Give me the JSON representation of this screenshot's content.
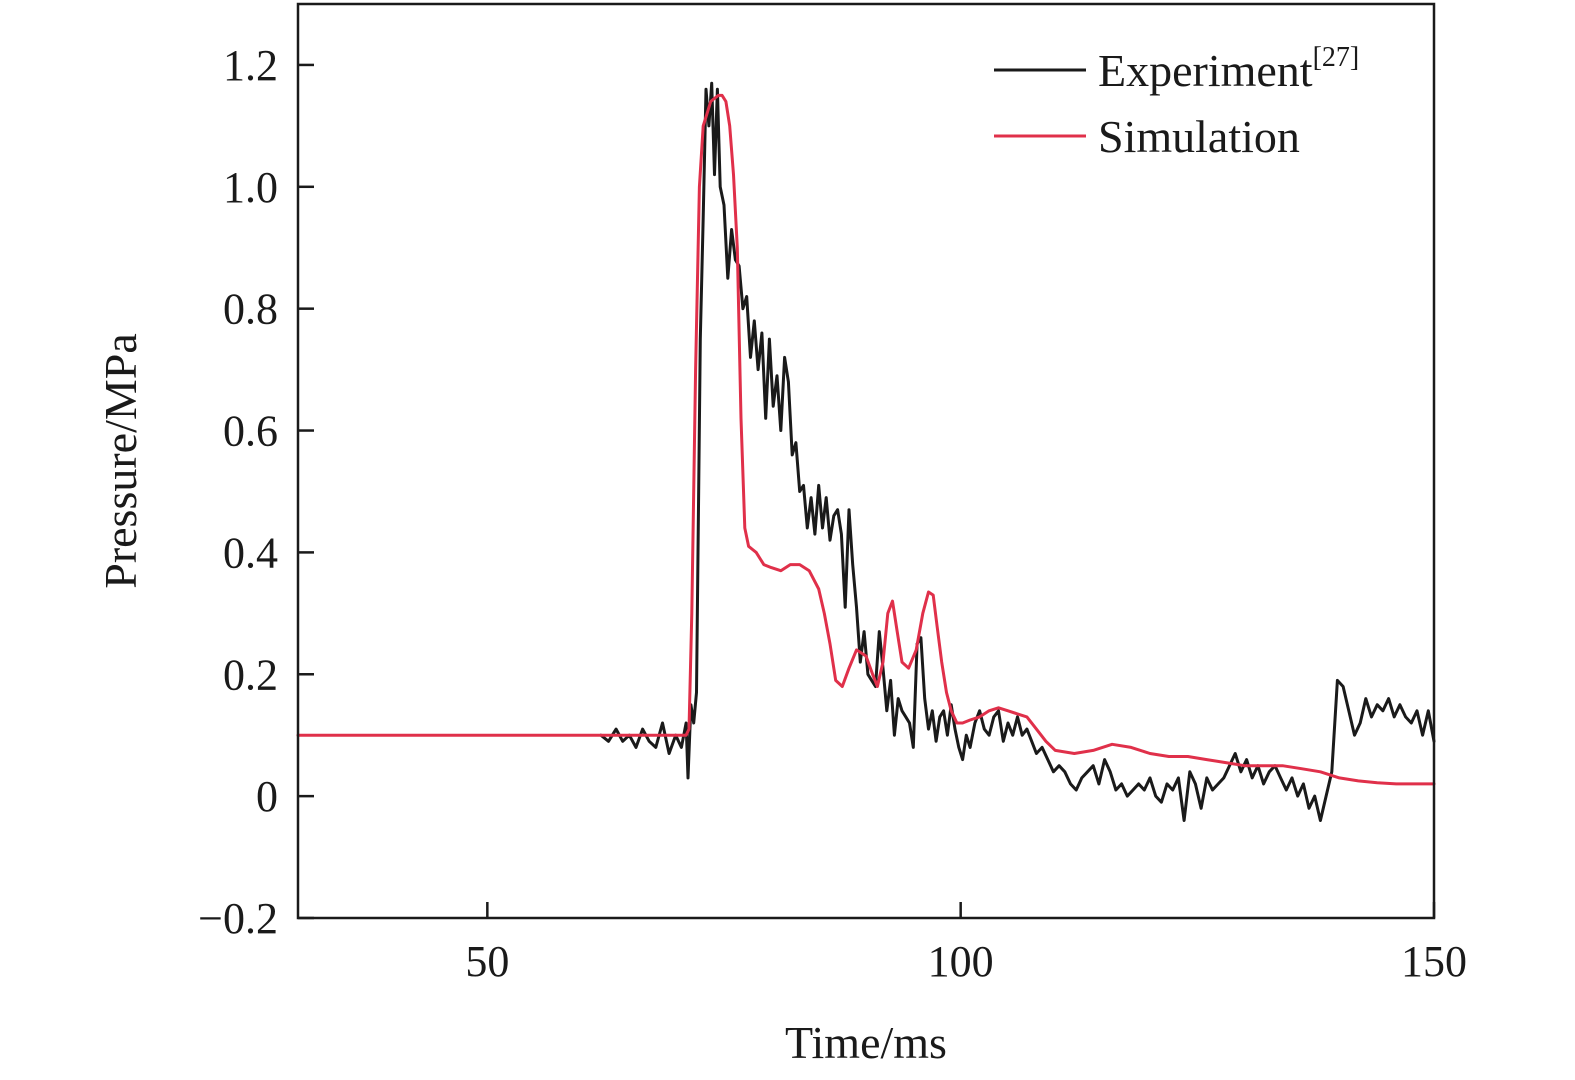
{
  "colors": {
    "experiment": "#1a1a1a",
    "simulation": "#e0304a",
    "axis": "#1a1a1a"
  },
  "chart_data": {
    "type": "line",
    "xlabel": "Time/ms",
    "ylabel": "Pressure/MPa",
    "xlim": [
      30,
      150
    ],
    "ylim": [
      -0.2,
      1.3
    ],
    "xticks": [
      50,
      100,
      150
    ],
    "yticks": [
      -0.2,
      0,
      0.2,
      0.4,
      0.6,
      0.8,
      1.0,
      1.2
    ],
    "ytick_labels": [
      "−0.2",
      "0",
      "0.2",
      "0.4",
      "0.6",
      "0.8",
      "1.0",
      "1.2"
    ],
    "xtick_labels": [
      "50",
      "100",
      "150"
    ],
    "legend_position": "top-right",
    "series": [
      {
        "name": "Experiment",
        "legend_sup": "[27]",
        "color_key": "experiment",
        "x": [
          62,
          62.8,
          63.6,
          64.3,
          65.0,
          65.7,
          66.4,
          67.1,
          67.8,
          68.5,
          69.2,
          69.9,
          70.5,
          71.0,
          71.2,
          71.5,
          71.8,
          72.1,
          72.5,
          72.8,
          73.1,
          73.4,
          73.7,
          74.0,
          74.3,
          74.6,
          75.0,
          75.4,
          75.8,
          76.2,
          76.6,
          77.0,
          77.4,
          77.8,
          78.2,
          78.6,
          79.0,
          79.4,
          79.8,
          80.2,
          80.6,
          81.0,
          81.4,
          81.8,
          82.2,
          82.6,
          83.0,
          83.4,
          83.8,
          84.2,
          84.6,
          85.0,
          85.4,
          85.8,
          86.2,
          86.6,
          87.0,
          87.4,
          87.8,
          88.2,
          88.6,
          89.0,
          89.4,
          89.8,
          90.2,
          90.6,
          91.0,
          91.4,
          91.8,
          92.2,
          92.6,
          93.0,
          93.4,
          93.8,
          94.2,
          94.6,
          95.0,
          95.4,
          95.8,
          96.2,
          96.6,
          97.0,
          97.4,
          97.8,
          98.2,
          98.6,
          99.0,
          99.4,
          99.8,
          100.2,
          100.6,
          101.0,
          101.5,
          102.0,
          102.5,
          103.0,
          103.5,
          104.0,
          104.5,
          105.0,
          105.5,
          106.0,
          106.5,
          107.0,
          107.5,
          108.0,
          108.6,
          109.2,
          109.8,
          110.4,
          111.0,
          111.6,
          112.2,
          112.8,
          113.4,
          114.0,
          114.6,
          115.2,
          115.8,
          116.4,
          117.0,
          117.6,
          118.2,
          118.8,
          119.4,
          120.0,
          120.6,
          121.2,
          121.8,
          122.4,
          123.0,
          123.6,
          124.2,
          124.8,
          125.4,
          126.0,
          126.6,
          127.2,
          127.8,
          128.4,
          129.0,
          129.6,
          130.2,
          130.8,
          131.4,
          132.0,
          132.6,
          133.2,
          133.8,
          134.4,
          135.0,
          135.6,
          136.2,
          136.8,
          137.4,
          138.0,
          138.6,
          139.2,
          139.8,
          140.4,
          141.0,
          141.6,
          142.2,
          142.8,
          143.4,
          144.0,
          144.6,
          145.2,
          145.8,
          146.4,
          147.0,
          147.6,
          148.2,
          148.8,
          149.4,
          150.0
        ],
        "y": [
          0.1,
          0.09,
          0.11,
          0.09,
          0.1,
          0.08,
          0.11,
          0.09,
          0.08,
          0.12,
          0.07,
          0.1,
          0.08,
          0.12,
          0.03,
          0.15,
          0.12,
          0.17,
          0.75,
          0.95,
          1.16,
          1.1,
          1.17,
          1.02,
          1.16,
          1.0,
          0.97,
          0.85,
          0.93,
          0.88,
          0.87,
          0.8,
          0.82,
          0.72,
          0.78,
          0.7,
          0.76,
          0.62,
          0.75,
          0.64,
          0.69,
          0.6,
          0.72,
          0.68,
          0.56,
          0.58,
          0.5,
          0.51,
          0.44,
          0.49,
          0.43,
          0.51,
          0.44,
          0.49,
          0.42,
          0.46,
          0.47,
          0.43,
          0.31,
          0.47,
          0.38,
          0.31,
          0.22,
          0.27,
          0.2,
          0.19,
          0.18,
          0.27,
          0.21,
          0.14,
          0.19,
          0.1,
          0.16,
          0.14,
          0.13,
          0.12,
          0.08,
          0.25,
          0.26,
          0.16,
          0.11,
          0.14,
          0.09,
          0.13,
          0.14,
          0.1,
          0.15,
          0.11,
          0.08,
          0.06,
          0.1,
          0.08,
          0.12,
          0.14,
          0.11,
          0.1,
          0.13,
          0.14,
          0.09,
          0.12,
          0.1,
          0.13,
          0.1,
          0.11,
          0.09,
          0.07,
          0.08,
          0.06,
          0.04,
          0.05,
          0.04,
          0.02,
          0.01,
          0.03,
          0.04,
          0.05,
          0.02,
          0.06,
          0.04,
          0.01,
          0.02,
          0.0,
          0.01,
          0.02,
          0.01,
          0.03,
          0.0,
          -0.01,
          0.02,
          0.01,
          0.03,
          -0.04,
          0.04,
          0.02,
          -0.02,
          0.03,
          0.01,
          0.02,
          0.03,
          0.05,
          0.07,
          0.04,
          0.06,
          0.03,
          0.05,
          0.02,
          0.04,
          0.05,
          0.03,
          0.01,
          0.03,
          0.0,
          0.02,
          -0.02,
          0.0,
          -0.04,
          0.0,
          0.04,
          0.19,
          0.18,
          0.14,
          0.1,
          0.12,
          0.16,
          0.13,
          0.15,
          0.14,
          0.16,
          0.13,
          0.15,
          0.13,
          0.12,
          0.14,
          0.1,
          0.14,
          0.09
        ]
      },
      {
        "name": "Simulation",
        "color_key": "simulation",
        "x": [
          30,
          60,
          70,
          71.0,
          71.3,
          71.6,
          72.0,
          72.4,
          72.8,
          73.2,
          73.6,
          74.0,
          74.4,
          74.8,
          75.2,
          75.6,
          76.0,
          76.4,
          76.8,
          77.2,
          77.6,
          78.0,
          78.4,
          78.8,
          79.2,
          80,
          81,
          82,
          83,
          84,
          85,
          85.6,
          86.2,
          86.8,
          87.5,
          88.2,
          89.0,
          90.0,
          90.7,
          91.2,
          91.8,
          92.3,
          92.8,
          93.3,
          93.8,
          94.5,
          95.3,
          96.0,
          96.6,
          97.1,
          97.5,
          98.0,
          98.5,
          99.0,
          99.6,
          100.2,
          101,
          102,
          103,
          104,
          105,
          106,
          107,
          108,
          109,
          110,
          112,
          114,
          116,
          118,
          120,
          122,
          124,
          126,
          128,
          130,
          132,
          134,
          136,
          138,
          140,
          142,
          144,
          146,
          148,
          150
        ],
        "y": [
          0.1,
          0.1,
          0.1,
          0.1,
          0.11,
          0.3,
          0.7,
          1.0,
          1.1,
          1.12,
          1.14,
          1.145,
          1.15,
          1.15,
          1.14,
          1.1,
          1.02,
          0.9,
          0.62,
          0.44,
          0.41,
          0.405,
          0.4,
          0.39,
          0.38,
          0.375,
          0.37,
          0.38,
          0.38,
          0.37,
          0.34,
          0.3,
          0.25,
          0.19,
          0.18,
          0.21,
          0.24,
          0.23,
          0.2,
          0.18,
          0.22,
          0.3,
          0.32,
          0.27,
          0.22,
          0.21,
          0.24,
          0.3,
          0.335,
          0.33,
          0.28,
          0.22,
          0.17,
          0.14,
          0.12,
          0.12,
          0.125,
          0.13,
          0.14,
          0.145,
          0.14,
          0.135,
          0.13,
          0.11,
          0.09,
          0.075,
          0.07,
          0.075,
          0.085,
          0.08,
          0.07,
          0.065,
          0.065,
          0.06,
          0.055,
          0.05,
          0.05,
          0.05,
          0.045,
          0.04,
          0.03,
          0.025,
          0.022,
          0.02,
          0.02,
          0.02
        ]
      }
    ]
  }
}
